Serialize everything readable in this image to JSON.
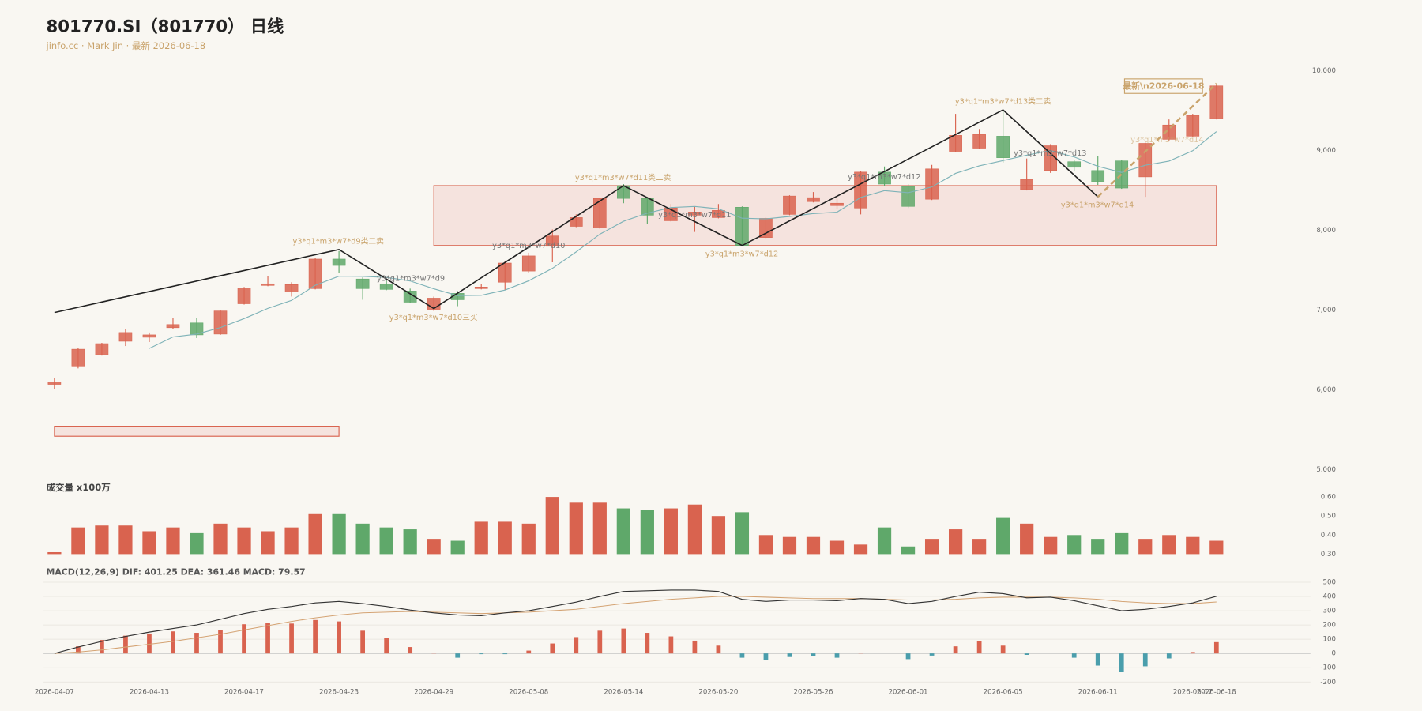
{
  "chart_data": [
    {
      "type": "candlestick",
      "title": "801770.SI（801770） 日线",
      "subtitle": "jinfo.cc · Mark Jin · 最新 2026-06-18",
      "categories": [
        "2026-04-07",
        null,
        null,
        null,
        "2026-04-13",
        null,
        null,
        null,
        "2026-04-17",
        null,
        null,
        null,
        "2026-04-23",
        null,
        null,
        null,
        "2026-04-29",
        null,
        null,
        null,
        "2026-05-08",
        null,
        null,
        null,
        "2026-05-14",
        null,
        null,
        null,
        "2026-05-20",
        null,
        null,
        null,
        "2026-05-26",
        null,
        null,
        null,
        "2026-06-01",
        null,
        null,
        null,
        "2026-06-05",
        null,
        null,
        null,
        "2026-06-11",
        null,
        null,
        null,
        "2026-06-17",
        "2026-06-18"
      ],
      "open": [
        6070,
        6300,
        6440,
        6610,
        6660,
        6780,
        6840,
        6700,
        7080,
        7310,
        7230,
        7270,
        7640,
        7390,
        7330,
        7240,
        7010,
        7210,
        7270,
        7350,
        7490,
        7800,
        8050,
        8030,
        8560,
        8400,
        8120,
        8190,
        8160,
        8290,
        7910,
        8200,
        8360,
        8310,
        8280,
        8730,
        8550,
        8390,
        8990,
        9030,
        9180,
        8510,
        8750,
        8860,
        8750,
        8870,
        8670,
        9140,
        9180,
        9400
      ],
      "high": [
        6150,
        6530,
        6590,
        6760,
        6720,
        6900,
        6900,
        7000,
        7290,
        7430,
        7350,
        7650,
        7740,
        7410,
        7380,
        7270,
        7170,
        7240,
        7330,
        7620,
        7720,
        8010,
        8200,
        8410,
        8580,
        8420,
        8330,
        8300,
        8330,
        8300,
        8160,
        8440,
        8480,
        8400,
        8740,
        8800,
        8580,
        8820,
        9460,
        9270,
        9500,
        8900,
        9080,
        8880,
        8930,
        8880,
        9100,
        9390,
        9460,
        9830
      ],
      "low": [
        6010,
        6270,
        6430,
        6550,
        6600,
        6760,
        6650,
        6690,
        7070,
        7300,
        7170,
        7260,
        7470,
        7130,
        7250,
        7090,
        6990,
        7050,
        7260,
        7250,
        7470,
        7600,
        8040,
        8020,
        8340,
        8080,
        8110,
        7980,
        8150,
        7800,
        7900,
        8190,
        8350,
        8270,
        8200,
        8560,
        8280,
        8380,
        8980,
        9020,
        8850,
        8500,
        8720,
        8740,
        8570,
        8520,
        8420,
        9120,
        9170,
        9390
      ],
      "close": [
        6100,
        6510,
        6580,
        6720,
        6690,
        6820,
        6690,
        6990,
        7280,
        7330,
        7320,
        7640,
        7560,
        7270,
        7260,
        7100,
        7150,
        7130,
        7290,
        7590,
        7680,
        7930,
        8160,
        8400,
        8400,
        8190,
        8280,
        8230,
        8250,
        7810,
        8150,
        8430,
        8410,
        8340,
        8730,
        8580,
        8300,
        8770,
        9190,
        9200,
        8910,
        8640,
        9060,
        8790,
        8610,
        8530,
        9090,
        9320,
        9440,
        9810
      ],
      "up_color": "#d9634f",
      "down_color": "#5fa86a",
      "ma": {
        "color": "#7fb3b8",
        "values": [
          null,
          null,
          null,
          null,
          6520,
          6664,
          6700,
          6782,
          6894,
          7022,
          7122,
          7312,
          7426,
          7424,
          7410,
          7366,
          7268,
          7182,
          7186,
          7252,
          7368,
          7524,
          7730,
          7952,
          8114,
          8216,
          8286,
          8300,
          8270,
          8152,
          8144,
          8174,
          8210,
          8228,
          8412,
          8498,
          8472,
          8544,
          8714,
          8808,
          8874,
          8942,
          9000,
          8920,
          8802,
          8726,
          8816,
          8868,
          8998,
          9238
        ]
      },
      "zigzag": {
        "color": "#222222",
        "indices": [
          0,
          12,
          16,
          24,
          29,
          40,
          44
        ],
        "values": [
          6970,
          7760,
          7020,
          8560,
          7810,
          9510,
          8420
        ]
      },
      "forecast": {
        "color": "#c9a36b",
        "indices": [
          44,
          49
        ],
        "values": [
          8420,
          9840
        ]
      },
      "zones": [
        {
          "start": 16,
          "end": 49,
          "high": 8560,
          "low": 7810
        },
        {
          "start": 0,
          "end": 12,
          "high": 5545,
          "low": 5420
        }
      ],
      "annotations": [
        "y3*q1*m3*w7*d9类二卖",
        "y3*q1*m3*w7*d9",
        "y3*q1*m3*w7*d10三买",
        "y3*q1*m3*w7*d10",
        "y3*q1*m3*w7*d11类二卖",
        "y3*q1*m3*w7*d11",
        "y3*q1*m3*w7*d12",
        "y3*q1*m3*w7*d12",
        "y3*q1*m3*w7*d13类二卖",
        "y3*q1*m3*w7*d13",
        "y3*q1*m3*w7*d14",
        "y3*q1*m3*w7*d14"
      ],
      "latest_label": "最新\\n2026-06-18",
      "ylim": [
        5000,
        10000
      ],
      "yticks": [
        {
          "value": 5000,
          "label": "5,000"
        },
        {
          "value": 6000,
          "label": "6,000"
        },
        {
          "value": 7000,
          "label": "7,000"
        },
        {
          "value": 8000,
          "label": "8,000"
        },
        {
          "value": 9000,
          "label": "9,000"
        },
        {
          "value": 10000,
          "label": "10,000"
        }
      ]
    },
    {
      "type": "bar",
      "y_label": "成交量 x100万",
      "values": [
        0.31,
        0.44,
        0.45,
        0.45,
        0.42,
        0.44,
        0.41,
        0.46,
        0.44,
        0.42,
        0.44,
        0.51,
        0.51,
        0.46,
        0.44,
        0.43,
        0.38,
        0.37,
        0.47,
        0.47,
        0.46,
        0.6,
        0.57,
        0.57,
        0.54,
        0.53,
        0.54,
        0.56,
        0.5,
        0.52,
        0.4,
        0.39,
        0.39,
        0.37,
        0.35,
        0.44,
        0.34,
        0.38,
        0.43,
        0.38,
        0.49,
        0.46,
        0.39,
        0.4,
        0.38,
        0.41,
        0.38,
        0.4,
        0.39,
        0.37
      ],
      "ylim": [
        0.3,
        0.6
      ],
      "yticks": [
        {
          "value": 0.3,
          "label": "0.30"
        },
        {
          "value": 0.4,
          "label": "0.40"
        },
        {
          "value": 0.5,
          "label": "0.50"
        },
        {
          "value": 0.6,
          "label": "0.60"
        }
      ]
    },
    {
      "type": "macd",
      "title": "MACD(12,26,9) DIF: 401.25 DEA: 361.46 MACD: 79.57",
      "dif": {
        "color": "#333333",
        "values": [
          0,
          45,
          85,
          120,
          150,
          175,
          200,
          240,
          280,
          310,
          330,
          355,
          365,
          350,
          330,
          305,
          285,
          270,
          265,
          285,
          300,
          330,
          360,
          400,
          435,
          440,
          445,
          445,
          435,
          380,
          365,
          375,
          375,
          370,
          385,
          380,
          350,
          365,
          400,
          430,
          420,
          390,
          395,
          370,
          335,
          300,
          310,
          330,
          355,
          401.25
        ]
      },
      "dea": {
        "color": "#d4a373",
        "values": [
          0,
          10,
          25,
          45,
          65,
          85,
          110,
          135,
          165,
          195,
          225,
          250,
          270,
          285,
          290,
          295,
          290,
          285,
          280,
          285,
          290,
          300,
          310,
          330,
          350,
          365,
          380,
          390,
          400,
          400,
          395,
          390,
          385,
          385,
          385,
          380,
          375,
          375,
          380,
          390,
          395,
          395,
          395,
          390,
          380,
          365,
          355,
          350,
          350,
          361.46
        ]
      },
      "macd": {
        "up_color": "#d9634f",
        "down_color": "#4a9eac",
        "values": [
          0,
          50,
          95,
          125,
          140,
          155,
          145,
          165,
          205,
          215,
          210,
          235,
          225,
          160,
          110,
          45,
          5,
          -30,
          -5,
          -5,
          20,
          70,
          115,
          160,
          175,
          145,
          120,
          90,
          55,
          -30,
          -45,
          -25,
          -20,
          -30,
          5,
          0,
          -40,
          -15,
          50,
          85,
          55,
          -10,
          0,
          -30,
          -85,
          -130,
          -90,
          -35,
          10,
          79.57
        ]
      },
      "ylim": [
        -200,
        500
      ],
      "yticks": [
        -200,
        -100,
        0,
        100,
        200,
        300,
        400,
        500
      ]
    }
  ]
}
